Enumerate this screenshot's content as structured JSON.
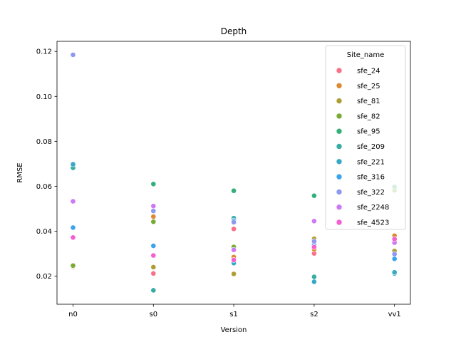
{
  "chart_data": {
    "type": "scatter",
    "title": "Depth",
    "xlabel": "Version",
    "ylabel": "RMSE",
    "categories": [
      "n0",
      "s0",
      "s1",
      "s2",
      "vv1"
    ],
    "ylim": [
      0.0075,
      0.1245
    ],
    "yticks": [
      0.02,
      0.04,
      0.06,
      0.08,
      0.1,
      0.12
    ],
    "ytick_labels": [
      "0.02",
      "0.04",
      "0.06",
      "0.08",
      "0.10",
      "0.12"
    ],
    "grid": false,
    "legend": {
      "title": "Site_name",
      "position": "top-right"
    },
    "series": [
      {
        "name": "sfe_24",
        "color": "#f77189",
        "values": [
          0.024,
          0.0212,
          0.041,
          0.0301,
          0.036
        ]
      },
      {
        "name": "sfe_25",
        "color": "#dc8932",
        "values": [
          0.0243,
          0.0465,
          0.0285,
          0.032,
          0.038
        ]
      },
      {
        "name": "sfe_81",
        "color": "#ae9d31",
        "values": [
          0.0245,
          0.024,
          0.021,
          0.0366,
          0.0312
        ]
      },
      {
        "name": "sfe_82",
        "color": "#77ab31",
        "values": [
          0.0247,
          0.0442,
          0.033,
          0.0342,
          0.0582
        ]
      },
      {
        "name": "sfe_95",
        "color": "#33b07a",
        "values": [
          0.069,
          0.061,
          0.058,
          0.0558,
          0.0597
        ]
      },
      {
        "name": "sfe_209",
        "color": "#36ada4",
        "values": [
          0.0682,
          0.0137,
          0.0458,
          0.0197,
          0.0212
        ]
      },
      {
        "name": "sfe_221",
        "color": "#38a9c5",
        "values": [
          0.0698,
          0.0335,
          0.0258,
          0.0175,
          0.0217
        ]
      },
      {
        "name": "sfe_316",
        "color": "#3ba3ec",
        "values": [
          0.0416,
          0.0335,
          0.0447,
          0.034,
          0.0277
        ]
      },
      {
        "name": "sfe_322",
        "color": "#8d98f0",
        "values": [
          0.1185,
          0.049,
          0.044,
          0.0355,
          0.0298
        ]
      },
      {
        "name": "sfe_2248",
        "color": "#cc7af4",
        "values": [
          0.0533,
          0.0512,
          0.0317,
          0.0445,
          0.0349
        ]
      },
      {
        "name": "sfe_4523",
        "color": "#f45fd1",
        "values": [
          0.0372,
          0.0292,
          0.0272,
          0.033,
          0.0365
        ]
      }
    ]
  }
}
